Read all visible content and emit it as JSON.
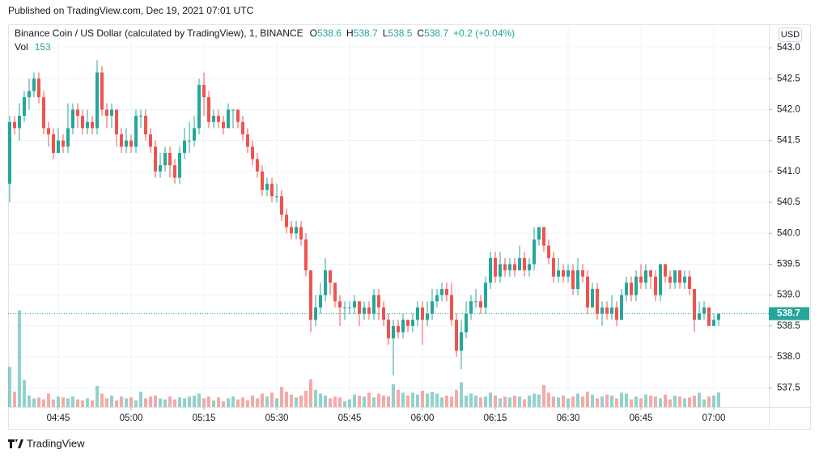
{
  "published": "Published on TradingView.com, Dec 19, 2021 07:01 UTC",
  "brand": "TradingView",
  "chart_data": {
    "type": "candlestick",
    "symbol": "Binance Coin / US Dollar (calculated by TradingView), 1, BINANCE",
    "o_label": "O",
    "h_label": "H",
    "l_label": "L",
    "c_label": "C",
    "change": "+0.2 (+0.04%)",
    "vol_label": "Vol",
    "currency": "USD",
    "up_color": "#26a69a",
    "down_color": "#ef5350",
    "grid": true,
    "x": [
      275,
      276,
      277,
      278,
      279,
      280,
      281,
      282,
      283,
      284,
      285,
      286,
      287,
      288,
      289,
      290,
      291,
      292,
      293,
      294,
      295,
      296,
      297,
      298,
      299,
      300,
      301,
      302,
      303,
      304,
      305,
      306,
      307,
      308,
      309,
      310,
      311,
      312,
      313,
      314,
      315,
      316,
      317,
      318,
      319,
      320,
      321,
      322,
      323,
      324,
      325,
      326,
      327,
      328,
      329,
      330,
      331,
      332,
      333,
      334,
      335,
      336,
      337,
      338,
      339,
      340,
      341,
      342,
      343,
      344,
      345,
      346,
      347,
      348,
      349,
      350,
      351,
      352,
      353,
      354,
      355,
      356,
      357,
      358,
      359,
      360,
      361,
      362,
      363,
      364,
      365,
      366,
      367,
      368,
      369,
      370,
      371,
      372,
      373,
      374,
      375,
      376,
      377,
      378,
      379,
      380,
      381,
      382,
      383,
      384,
      385,
      386,
      387,
      388,
      389,
      390,
      391,
      392,
      393,
      394,
      395,
      396,
      397,
      398,
      399,
      400,
      401,
      402,
      403,
      404,
      405,
      406,
      407,
      408,
      409,
      410,
      411,
      412,
      413,
      414,
      415,
      416,
      417,
      418,
      419,
      420,
      421
    ],
    "opens": [
      540.8,
      541.8,
      541.7,
      541.9,
      542.2,
      542.3,
      542.5,
      542.2,
      541.7,
      541.6,
      541.3,
      541.5,
      541.4,
      541.7,
      542.0,
      541.9,
      541.7,
      541.8,
      541.7,
      542.6,
      542.0,
      541.9,
      542.0,
      541.6,
      541.4,
      541.5,
      541.4,
      541.9,
      541.9,
      541.6,
      541.4,
      541.0,
      541.1,
      541.3,
      541.1,
      540.9,
      541.3,
      541.5,
      541.5,
      541.7,
      542.4,
      542.2,
      541.8,
      541.9,
      541.8,
      541.7,
      542.0,
      542.0,
      541.8,
      541.6,
      541.4,
      541.2,
      541.0,
      540.7,
      540.8,
      540.6,
      540.6,
      540.3,
      540.1,
      540.0,
      540.1,
      539.9,
      539.4,
      538.6,
      538.8,
      539.0,
      539.4,
      539.2,
      538.9,
      538.8,
      538.8,
      538.8,
      538.9,
      538.7,
      538.8,
      538.7,
      539.0,
      538.8,
      538.6,
      538.3,
      538.5,
      538.4,
      538.6,
      538.5,
      538.6,
      538.8,
      538.6,
      538.7,
      538.9,
      539.0,
      539.1,
      539.0,
      538.6,
      538.1,
      538.4,
      538.7,
      538.9,
      538.9,
      538.8,
      539.2,
      539.6,
      539.3,
      539.5,
      539.4,
      539.5,
      539.4,
      539.6,
      539.4,
      539.5,
      539.9,
      540.1,
      539.8,
      539.6,
      539.3,
      539.4,
      539.3,
      539.4,
      539.1,
      539.4,
      539.3,
      538.8,
      539.1,
      538.7,
      538.8,
      538.7,
      538.8,
      538.6,
      539.0,
      539.2,
      539.0,
      539.3,
      539.2,
      539.4,
      539.3,
      539.0,
      539.5,
      539.3,
      539.2,
      539.4,
      539.2,
      539.3,
      539.1,
      538.6,
      538.7,
      538.8,
      538.5,
      538.6
    ],
    "highs": [
      541.9,
      541.9,
      542.1,
      542.3,
      542.5,
      542.6,
      542.6,
      542.3,
      541.8,
      541.7,
      541.7,
      541.6,
      542.1,
      542.1,
      542.1,
      542.0,
      542.0,
      541.9,
      542.8,
      542.7,
      542.1,
      542.1,
      542.0,
      541.7,
      541.7,
      541.6,
      542.0,
      542.0,
      542.0,
      541.7,
      541.5,
      541.3,
      541.4,
      541.4,
      541.2,
      541.4,
      541.7,
      541.8,
      541.9,
      542.5,
      542.6,
      542.3,
      542.0,
      542.0,
      541.9,
      542.1,
      542.0,
      542.0,
      541.9,
      541.7,
      541.5,
      541.3,
      541.1,
      540.9,
      540.9,
      540.8,
      540.7,
      540.4,
      540.2,
      540.2,
      540.2,
      540.0,
      539.4,
      539.0,
      539.2,
      539.6,
      539.4,
      539.2,
      539.0,
      538.9,
      538.9,
      539.0,
      538.9,
      538.9,
      538.9,
      539.1,
      539.1,
      538.9,
      538.7,
      538.6,
      538.6,
      538.7,
      538.6,
      538.7,
      538.9,
      538.9,
      538.9,
      539.1,
      539.1,
      539.2,
      539.2,
      539.2,
      538.7,
      538.6,
      538.9,
      539.0,
      539.1,
      539.0,
      539.3,
      539.7,
      539.7,
      539.7,
      539.6,
      539.6,
      539.6,
      539.8,
      539.7,
      539.6,
      540.1,
      540.1,
      540.1,
      539.9,
      539.7,
      539.6,
      539.5,
      539.5,
      539.5,
      539.6,
      539.5,
      539.4,
      539.2,
      539.2,
      538.9,
      538.9,
      539.0,
      538.9,
      539.1,
      539.3,
      539.3,
      539.4,
      539.5,
      539.5,
      539.4,
      539.4,
      539.5,
      539.5,
      539.4,
      539.4,
      539.4,
      539.4,
      539.4,
      539.1,
      538.9,
      538.9,
      538.8,
      538.7,
      538.7
    ],
    "lows": [
      540.5,
      541.6,
      541.5,
      541.8,
      542.0,
      542.2,
      542.1,
      541.6,
      541.4,
      541.2,
      541.3,
      541.3,
      541.3,
      541.6,
      541.7,
      541.6,
      541.6,
      541.6,
      541.6,
      541.9,
      541.7,
      541.7,
      541.4,
      541.3,
      541.3,
      541.3,
      541.3,
      541.7,
      541.5,
      541.3,
      540.9,
      540.9,
      541.0,
      540.9,
      540.8,
      540.8,
      541.2,
      541.3,
      541.4,
      541.6,
      541.9,
      541.7,
      541.7,
      541.7,
      541.6,
      541.7,
      541.7,
      541.7,
      541.5,
      541.3,
      541.1,
      540.9,
      540.6,
      540.6,
      540.5,
      540.5,
      540.2,
      540.0,
      539.9,
      539.9,
      539.8,
      539.3,
      538.4,
      538.5,
      538.7,
      538.9,
      539.0,
      538.8,
      538.5,
      538.6,
      538.7,
      538.7,
      538.5,
      538.6,
      538.6,
      538.6,
      538.6,
      538.5,
      538.2,
      537.7,
      538.3,
      538.3,
      538.4,
      538.4,
      538.5,
      538.2,
      538.5,
      538.6,
      538.8,
      538.9,
      538.9,
      538.5,
      538.0,
      537.8,
      538.3,
      538.6,
      538.8,
      538.7,
      538.7,
      539.1,
      539.2,
      539.2,
      539.3,
      539.3,
      539.3,
      539.4,
      539.3,
      539.3,
      539.4,
      539.8,
      539.7,
      539.5,
      539.2,
      539.2,
      539.2,
      539.2,
      539.0,
      539.0,
      539.2,
      538.7,
      538.8,
      538.6,
      538.5,
      538.6,
      538.6,
      538.5,
      538.6,
      538.9,
      538.9,
      538.9,
      539.1,
      539.1,
      539.1,
      538.9,
      538.9,
      539.2,
      539.1,
      539.1,
      539.1,
      539.1,
      539.0,
      538.4,
      538.6,
      538.6,
      538.5,
      538.5,
      538.5
    ],
    "closes": [
      541.8,
      541.7,
      541.9,
      542.2,
      542.3,
      542.5,
      542.2,
      541.7,
      541.6,
      541.3,
      541.5,
      541.4,
      541.7,
      542.0,
      541.9,
      541.7,
      541.8,
      541.7,
      542.6,
      542.0,
      541.9,
      542.0,
      541.6,
      541.4,
      541.5,
      541.4,
      541.9,
      541.9,
      541.6,
      541.4,
      541.0,
      541.1,
      541.3,
      541.1,
      540.9,
      541.3,
      541.5,
      541.5,
      541.7,
      542.4,
      542.2,
      541.8,
      541.9,
      541.8,
      541.7,
      542.0,
      542.0,
      541.8,
      541.6,
      541.4,
      541.2,
      541.0,
      540.7,
      540.8,
      540.6,
      540.6,
      540.3,
      540.1,
      540.0,
      540.1,
      539.9,
      539.4,
      538.6,
      538.8,
      539.0,
      539.4,
      539.2,
      538.9,
      538.8,
      538.8,
      538.8,
      538.9,
      538.7,
      538.8,
      538.7,
      539.0,
      538.8,
      538.6,
      538.3,
      538.5,
      538.4,
      538.6,
      538.5,
      538.6,
      538.8,
      538.6,
      538.7,
      538.9,
      539.0,
      539.1,
      539.0,
      538.6,
      538.1,
      538.4,
      538.7,
      538.9,
      538.9,
      538.8,
      539.2,
      539.6,
      539.3,
      539.5,
      539.4,
      539.5,
      539.4,
      539.6,
      539.4,
      539.5,
      539.9,
      540.1,
      539.8,
      539.6,
      539.3,
      539.4,
      539.3,
      539.4,
      539.1,
      539.4,
      539.3,
      538.8,
      539.1,
      538.7,
      538.8,
      538.7,
      538.8,
      538.6,
      539.0,
      539.2,
      539.0,
      539.3,
      539.2,
      539.4,
      539.3,
      539.0,
      539.5,
      539.3,
      539.2,
      539.4,
      539.2,
      539.3,
      539.1,
      538.6,
      538.7,
      538.8,
      538.5,
      538.6,
      538.7
    ],
    "volume": [
      420,
      160,
      1010,
      280,
      120,
      90,
      100,
      80,
      140,
      80,
      110,
      100,
      90,
      110,
      80,
      70,
      90,
      70,
      220,
      140,
      90,
      120,
      70,
      110,
      90,
      100,
      70,
      160,
      90,
      110,
      120,
      90,
      80,
      110,
      80,
      100,
      90,
      110,
      120,
      140,
      90,
      110,
      70,
      100,
      60,
      90,
      110,
      80,
      100,
      70,
      120,
      90,
      140,
      110,
      150,
      90,
      210,
      160,
      130,
      100,
      120,
      170,
      290,
      180,
      140,
      120,
      90,
      110,
      100,
      60,
      80,
      130,
      120,
      110,
      150,
      100,
      140,
      120,
      110,
      240,
      180,
      150,
      120,
      150,
      130,
      170,
      140,
      160,
      140,
      100,
      120,
      110,
      180,
      260,
      120,
      140,
      120,
      100,
      110,
      150,
      120,
      90,
      110,
      100,
      120,
      110,
      80,
      120,
      140,
      130,
      230,
      150,
      110,
      100,
      120,
      90,
      110,
      140,
      110,
      160,
      130,
      90,
      110,
      130,
      120,
      90,
      150,
      140,
      80,
      110,
      90,
      130,
      120,
      110,
      90,
      130,
      80,
      120,
      110,
      90,
      100,
      120,
      150,
      80,
      110,
      120,
      153
    ],
    "volume_lim": [
      0,
      4000
    ],
    "xlim": [
      274.67,
      431.33
    ],
    "xticks": [
      {
        "value": 285,
        "label": "04:45"
      },
      {
        "value": 300,
        "label": "05:00"
      },
      {
        "value": 315,
        "label": "05:15"
      },
      {
        "value": 330,
        "label": "05:30"
      },
      {
        "value": 345,
        "label": "05:45"
      },
      {
        "value": 360,
        "label": "06:00"
      },
      {
        "value": 375,
        "label": "06:15"
      },
      {
        "value": 390,
        "label": "06:30"
      },
      {
        "value": 405,
        "label": "06:45"
      },
      {
        "value": 420,
        "label": "07:00"
      }
    ],
    "ylim": [
      537.19,
      543.38
    ],
    "yticks": [
      537.5,
      {
        "value": 538,
        "label": "538.0"
      },
      538.5,
      {
        "value": 539,
        "label": "539.0"
      },
      539.5,
      {
        "value": 540,
        "label": "540.0"
      },
      540.5,
      {
        "value": 541,
        "label": "541.0"
      },
      541.5,
      {
        "value": 542,
        "label": "542.0"
      },
      542.5,
      {
        "value": 543,
        "label": "543.0"
      }
    ]
  }
}
